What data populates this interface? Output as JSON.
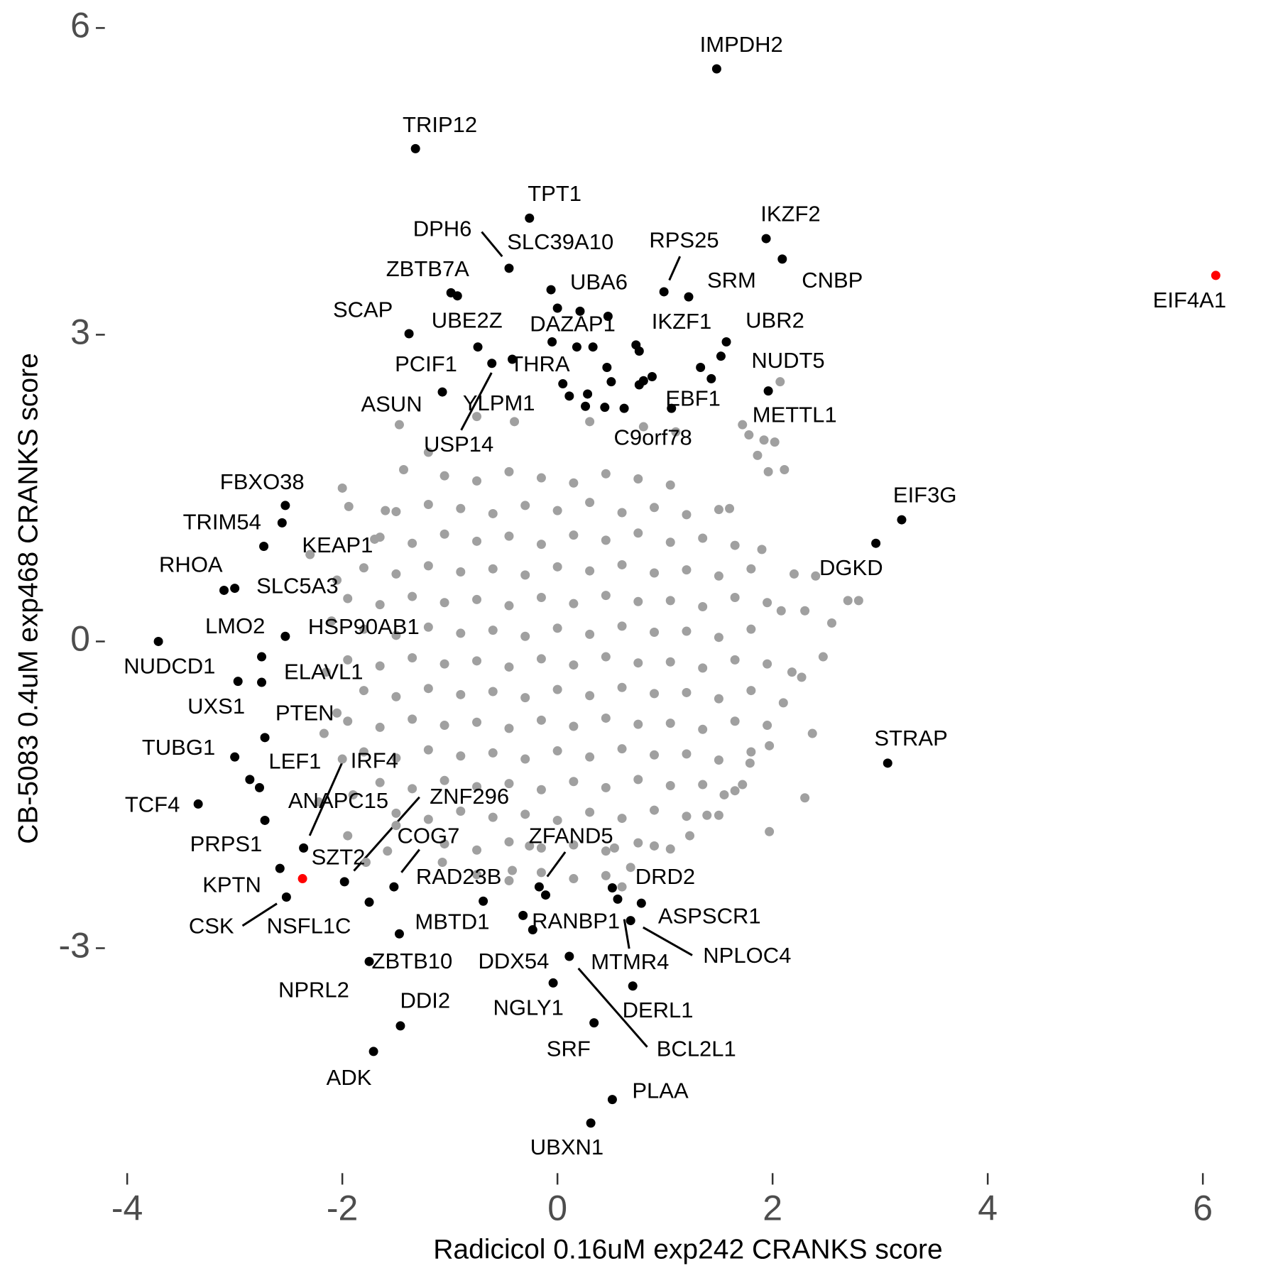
{
  "chart_data": {
    "type": "scatter",
    "x_label": "Radicicol 0.16uM exp242 CRANKS score",
    "y_label": "CB-5083 0.4uM exp468 CRANKS score",
    "xlim": [
      -4.2,
      6.4
    ],
    "ylim": [
      -5.1,
      6.2
    ],
    "xticks": [
      -4,
      -2,
      0,
      2,
      4,
      6
    ],
    "yticks": [
      -3,
      0,
      3,
      6
    ],
    "grid": false,
    "series": [
      {
        "color": "#a0a0a0",
        "x": [
          -1.05,
          -0.75,
          -0.45,
          -0.15,
          0.15,
          0.45,
          0.75,
          1.05,
          -1.5,
          -1.2,
          -0.9,
          -0.6,
          -0.3,
          0,
          0.3,
          0.6,
          0.9,
          1.2,
          1.5,
          -1.65,
          -1.35,
          -1.05,
          -0.75,
          -0.45,
          -0.15,
          0.15,
          0.45,
          0.75,
          1.05,
          1.35,
          1.65,
          -1.8,
          -1.5,
          -1.2,
          -0.9,
          -0.6,
          -0.3,
          0,
          0.3,
          0.6,
          0.9,
          1.2,
          1.5,
          1.8,
          -1.95,
          -1.65,
          -1.35,
          -1.05,
          -0.75,
          -0.45,
          -0.15,
          0.15,
          0.45,
          0.75,
          1.05,
          1.35,
          1.65,
          1.95,
          -1.8,
          -1.5,
          -1.2,
          -0.9,
          -0.6,
          -0.3,
          0,
          0.3,
          0.6,
          0.9,
          1.2,
          1.5,
          1.8,
          -1.95,
          -1.65,
          -1.35,
          -1.05,
          -0.75,
          -0.45,
          -0.15,
          0.15,
          0.45,
          0.75,
          1.05,
          1.35,
          1.65,
          1.95,
          -1.8,
          -1.5,
          -1.2,
          -0.9,
          -0.6,
          -0.3,
          0,
          0.3,
          0.6,
          0.9,
          1.2,
          1.5,
          1.8,
          -1.95,
          -1.65,
          -1.35,
          -1.05,
          -0.75,
          -0.45,
          -0.15,
          0.15,
          0.45,
          0.75,
          1.05,
          1.35,
          1.65,
          1.95,
          -1.8,
          -1.5,
          -1.2,
          -0.9,
          -0.6,
          -0.3,
          0,
          0.3,
          0.6,
          0.9,
          1.2,
          1.5,
          1.8,
          -1.65,
          -1.35,
          -1.05,
          -0.75,
          -0.45,
          -0.15,
          0.15,
          0.45,
          0.75,
          1.05,
          1.35,
          1.65,
          -1.5,
          -1.2,
          -0.9,
          -0.6,
          -0.3,
          0,
          0.3,
          0.6,
          0.9,
          1.2,
          1.5,
          -1.05,
          -0.75,
          -0.45,
          -0.15,
          0.15,
          0.45,
          0.75,
          1.05,
          -0.75,
          -0.45,
          -0.15,
          0.15,
          0.45,
          2.07,
          1.72,
          1.78,
          1.92,
          2.02,
          1.86,
          2.11,
          1.96,
          2.2,
          2.4,
          2.7,
          2.8,
          2.55,
          2.47,
          2.27,
          2.18,
          2.08,
          2.3,
          2.37,
          1.97,
          1.79,
          1.72,
          2.3,
          1.97,
          1.55,
          -2.0,
          -1.94,
          -1.6,
          -1.47,
          -1.43,
          -1.2,
          -2.05,
          -2.3,
          -2.15,
          -2.05,
          -2.17,
          -2.0,
          -2.22,
          -1.95,
          -1.78,
          -1.58,
          -1.07,
          -0.42,
          -0.26,
          0.53,
          0.68,
          0.9,
          1.23,
          1.39,
          -0.75,
          -0.4,
          0.3,
          0.8,
          1.1,
          -1.5,
          1.6,
          -1.7,
          1.9,
          -2.1,
          2.1,
          -1.9,
          0.6
        ],
        "values": [
          1.62,
          1.57,
          1.66,
          1.6,
          1.55,
          1.64,
          1.59,
          1.53,
          1.27,
          1.34,
          1.3,
          1.25,
          1.33,
          1.28,
          1.36,
          1.26,
          1.31,
          1.24,
          1.29,
          1.02,
          0.96,
          1.05,
          0.98,
          1.03,
          0.95,
          1.04,
          0.99,
          1.06,
          0.97,
          1.01,
          0.94,
          0.72,
          0.66,
          0.74,
          0.68,
          0.71,
          0.65,
          0.73,
          0.69,
          0.75,
          0.67,
          0.7,
          0.64,
          0.71,
          0.42,
          0.36,
          0.44,
          0.38,
          0.41,
          0.35,
          0.43,
          0.37,
          0.45,
          0.39,
          0.4,
          0.34,
          0.43,
          0.38,
          0.12,
          0.06,
          0.14,
          0.08,
          0.11,
          0.05,
          0.13,
          0.07,
          0.15,
          0.09,
          0.1,
          0.04,
          0.12,
          -0.18,
          -0.24,
          -0.16,
          -0.22,
          -0.19,
          -0.25,
          -0.17,
          -0.23,
          -0.15,
          -0.21,
          -0.2,
          -0.26,
          -0.18,
          -0.22,
          -0.48,
          -0.54,
          -0.46,
          -0.52,
          -0.49,
          -0.55,
          -0.47,
          -0.53,
          -0.45,
          -0.51,
          -0.5,
          -0.56,
          -0.48,
          -0.78,
          -0.84,
          -0.76,
          -0.82,
          -0.79,
          -0.85,
          -0.77,
          -0.83,
          -0.75,
          -0.81,
          -0.8,
          -0.86,
          -0.78,
          -0.82,
          -1.08,
          -1.14,
          -1.06,
          -1.12,
          -1.09,
          -1.15,
          -1.07,
          -1.13,
          -1.05,
          -1.11,
          -1.1,
          -1.16,
          -1.08,
          -1.38,
          -1.44,
          -1.36,
          -1.42,
          -1.39,
          -1.45,
          -1.37,
          -1.43,
          -1.35,
          -1.41,
          -1.4,
          -1.46,
          -1.68,
          -1.74,
          -1.66,
          -1.72,
          -1.69,
          -1.75,
          -1.67,
          -1.73,
          -1.65,
          -1.71,
          -1.7,
          -1.98,
          -2.04,
          -1.96,
          -2.02,
          -1.99,
          -2.05,
          -1.97,
          -2.03,
          -2.28,
          -2.34,
          -2.26,
          -2.32,
          -2.29,
          2.54,
          2.12,
          2.02,
          1.97,
          1.95,
          1.82,
          1.68,
          1.66,
          0.66,
          0.64,
          0.4,
          0.4,
          0.18,
          -0.15,
          -0.35,
          -0.3,
          0.3,
          0.3,
          -0.9,
          -1.02,
          -1.19,
          -1.4,
          -1.53,
          -1.86,
          -1.5,
          1.5,
          1.32,
          1.28,
          2.12,
          1.68,
          1.85,
          0.6,
          0.85,
          -0.3,
          -0.7,
          -0.9,
          -1.15,
          -1.57,
          -1.9,
          -2.16,
          -2.05,
          -2.16,
          -2.24,
          -2.0,
          -2.02,
          -2.21,
          -2.0,
          -1.9,
          -1.7,
          2.2,
          2.15,
          2.15,
          2.1,
          2.05,
          -1.8,
          1.3,
          1.0,
          0.9,
          0.2,
          -0.6,
          -1.5,
          -2.4
        ]
      },
      {
        "color": "#000000",
        "x": [
          1.48,
          -1.32,
          -0.26,
          1.94,
          2.09,
          -0.45,
          0.99,
          1.22,
          -0.99,
          -0.93,
          -0.06,
          -1.38,
          -0.74,
          0.0,
          0.21,
          0.47,
          0.73,
          0.76,
          1.57,
          -0.61,
          -0.42,
          -0.05,
          0.18,
          0.33,
          0.46,
          1.52,
          1.33,
          1.43,
          1.96,
          0.05,
          0.5,
          0.88,
          0.8,
          0.76,
          -1.07,
          0.11,
          0.28,
          0.26,
          0.44,
          0.62,
          1.06,
          -2.53,
          -2.56,
          -2.73,
          -3.1,
          -3.0,
          -2.53,
          -3.71,
          -2.75,
          -2.97,
          -2.75,
          -2.72,
          -3.0,
          -2.86,
          -2.77,
          -3.34,
          -2.72,
          -2.36,
          -2.58,
          -1.98,
          -2.52,
          -1.75,
          -1.52,
          -0.69,
          -0.17,
          -0.11,
          -0.32,
          -0.23,
          0.51,
          0.56,
          0.78,
          0.68,
          -1.47,
          -1.75,
          0.11,
          -0.04,
          0.7,
          -1.46,
          0.34,
          -1.71,
          0.51,
          0.31,
          3.2,
          2.96,
          3.07
        ],
        "values": [
          5.6,
          4.82,
          4.14,
          3.94,
          3.74,
          3.65,
          3.42,
          3.37,
          3.41,
          3.38,
          3.44,
          3.01,
          2.88,
          3.26,
          3.23,
          3.18,
          2.9,
          2.84,
          2.93,
          2.72,
          2.76,
          2.93,
          2.88,
          2.88,
          2.68,
          2.79,
          2.68,
          2.57,
          2.45,
          2.52,
          2.54,
          2.59,
          2.55,
          2.51,
          2.44,
          2.4,
          2.42,
          2.3,
          2.29,
          2.28,
          2.28,
          1.33,
          1.16,
          0.93,
          0.5,
          0.52,
          0.05,
          0,
          -0.15,
          -0.39,
          -0.4,
          -0.94,
          -1.13,
          -1.35,
          -1.43,
          -1.59,
          -1.75,
          -2.02,
          -2.22,
          -2.35,
          -2.5,
          -2.55,
          -2.4,
          -2.54,
          -2.4,
          -2.48,
          -2.68,
          -2.82,
          -2.41,
          -2.52,
          -2.56,
          -2.73,
          -2.86,
          -3.13,
          -3.08,
          -3.34,
          -3.37,
          -3.76,
          -3.73,
          -4.01,
          -4.48,
          -4.71,
          1.19,
          0.96,
          -1.19
        ]
      },
      {
        "color": "#ff0000",
        "x": [
          6.12,
          -2.37
        ],
        "values": [
          3.58,
          -2.32
        ]
      }
    ],
    "annotations": [
      "IMPDH2",
      "TRIP12",
      "TPT1",
      "IKZF2",
      "DPH6",
      "SLC39A10",
      "RPS25",
      "ZBTB7A",
      "SRM",
      "CNBP",
      "EIF4A1",
      "UBA6",
      "SCAP",
      "UBE2Z",
      "DAZAP1",
      "IKZF1",
      "UBR2",
      "PCIF1",
      "THRA",
      "NUDT5",
      "ASUN",
      "YLPM1",
      "EBF1",
      "METTL1",
      "USP14",
      "C9orf78",
      "FBXO38",
      "EIF3G",
      "TRIM54",
      "KEAP1",
      "RHOA",
      "DGKD",
      "SLC5A3",
      "LMO2",
      "HSP90AB1",
      "NUDCD1",
      "ELAVL1",
      "UXS1",
      "PTEN",
      "TUBG1",
      "STRAP",
      "LEF1",
      "IRF4",
      "ZNF296",
      "TCF4",
      "ANAPC15",
      "COG7",
      "ZFAND5",
      "PRPS1",
      "SZT2",
      "RAD23B",
      "DRD2",
      "KPTN",
      "ASPSCR1",
      "CSK",
      "NSFL1C",
      "MBTD1",
      "RANBP1",
      "NPLOC4",
      "ZBTB10",
      "DDX54",
      "MTMR4",
      "NPRL2",
      "DDI2",
      "NGLY1",
      "DERL1",
      "SRF",
      "BCL2L1",
      "ADK",
      "PLAA",
      "UBXN1"
    ]
  }
}
